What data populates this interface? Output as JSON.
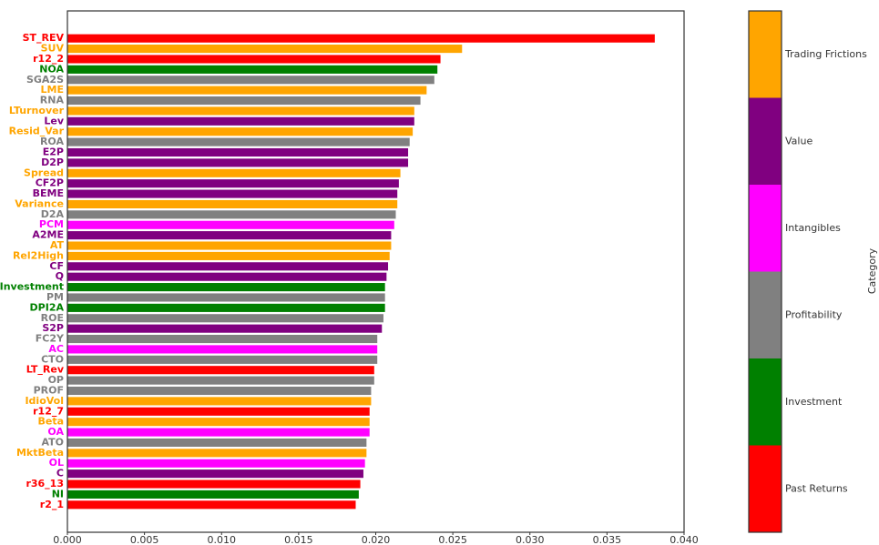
{
  "chart_data": {
    "type": "barh",
    "categories": [
      "ST_REV",
      "SUV",
      "r12_2",
      "NOA",
      "SGA2S",
      "LME",
      "RNA",
      "LTurnover",
      "Lev",
      "Resid_Var",
      "ROA",
      "E2P",
      "D2P",
      "Spread",
      "CF2P",
      "BEME",
      "Variance",
      "D2A",
      "PCM",
      "A2ME",
      "AT",
      "Rel2High",
      "CF",
      "Q",
      "Investment",
      "PM",
      "DPI2A",
      "ROE",
      "S2P",
      "FC2Y",
      "AC",
      "CTO",
      "LT_Rev",
      "OP",
      "PROF",
      "IdioVol",
      "r12_7",
      "Beta",
      "OA",
      "ATO",
      "MktBeta",
      "OL",
      "C",
      "r36_13",
      "NI",
      "r2_1"
    ],
    "values": [
      0.0381,
      0.0256,
      0.0242,
      0.024,
      0.0238,
      0.0233,
      0.0229,
      0.0225,
      0.0225,
      0.0224,
      0.0222,
      0.0221,
      0.0221,
      0.0216,
      0.0215,
      0.0214,
      0.0214,
      0.0213,
      0.0212,
      0.021,
      0.021,
      0.0209,
      0.0208,
      0.0207,
      0.0206,
      0.0206,
      0.0206,
      0.0205,
      0.0204,
      0.0201,
      0.0201,
      0.0201,
      0.0199,
      0.0199,
      0.0197,
      0.0197,
      0.0196,
      0.0196,
      0.0196,
      0.0194,
      0.0194,
      0.0193,
      0.0192,
      0.019,
      0.0189,
      0.0187
    ],
    "colors": [
      "#ff0000",
      "#ffa500",
      "#ff0000",
      "#008000",
      "#808080",
      "#ffa500",
      "#808080",
      "#ffa500",
      "#800080",
      "#ffa500",
      "#808080",
      "#800080",
      "#800080",
      "#ffa500",
      "#800080",
      "#800080",
      "#ffa500",
      "#808080",
      "#ff00ff",
      "#800080",
      "#ffa500",
      "#ffa500",
      "#800080",
      "#800080",
      "#008000",
      "#808080",
      "#008000",
      "#808080",
      "#800080",
      "#808080",
      "#ff00ff",
      "#808080",
      "#ff0000",
      "#808080",
      "#808080",
      "#ffa500",
      "#ff0000",
      "#ffa500",
      "#ff00ff",
      "#808080",
      "#ffa500",
      "#ff00ff",
      "#800080",
      "#ff0000",
      "#008000",
      "#ff0000"
    ],
    "xlim": [
      0,
      0.04
    ],
    "xticks": [
      {
        "value": 0,
        "label": "0.000"
      },
      {
        "value": 0.005,
        "label": "0.005"
      },
      {
        "value": 0.01,
        "label": "0.010"
      },
      {
        "value": 0.015,
        "label": "0.015"
      },
      {
        "value": 0.02,
        "label": "0.020"
      },
      {
        "value": 0.025,
        "label": "0.025"
      },
      {
        "value": 0.03,
        "label": "0.030"
      },
      {
        "value": 0.035,
        "label": "0.035"
      },
      {
        "value": 0.04,
        "label": "0.040"
      }
    ],
    "colorbar": {
      "label": "Category",
      "categories": [
        "Past Returns",
        "Investment",
        "Profitability",
        "Intangibles",
        "Value",
        "Trading Frictions"
      ],
      "colors": [
        "#ff0000",
        "#008000",
        "#808080",
        "#ff00ff",
        "#800080",
        "#ffa500"
      ]
    }
  }
}
